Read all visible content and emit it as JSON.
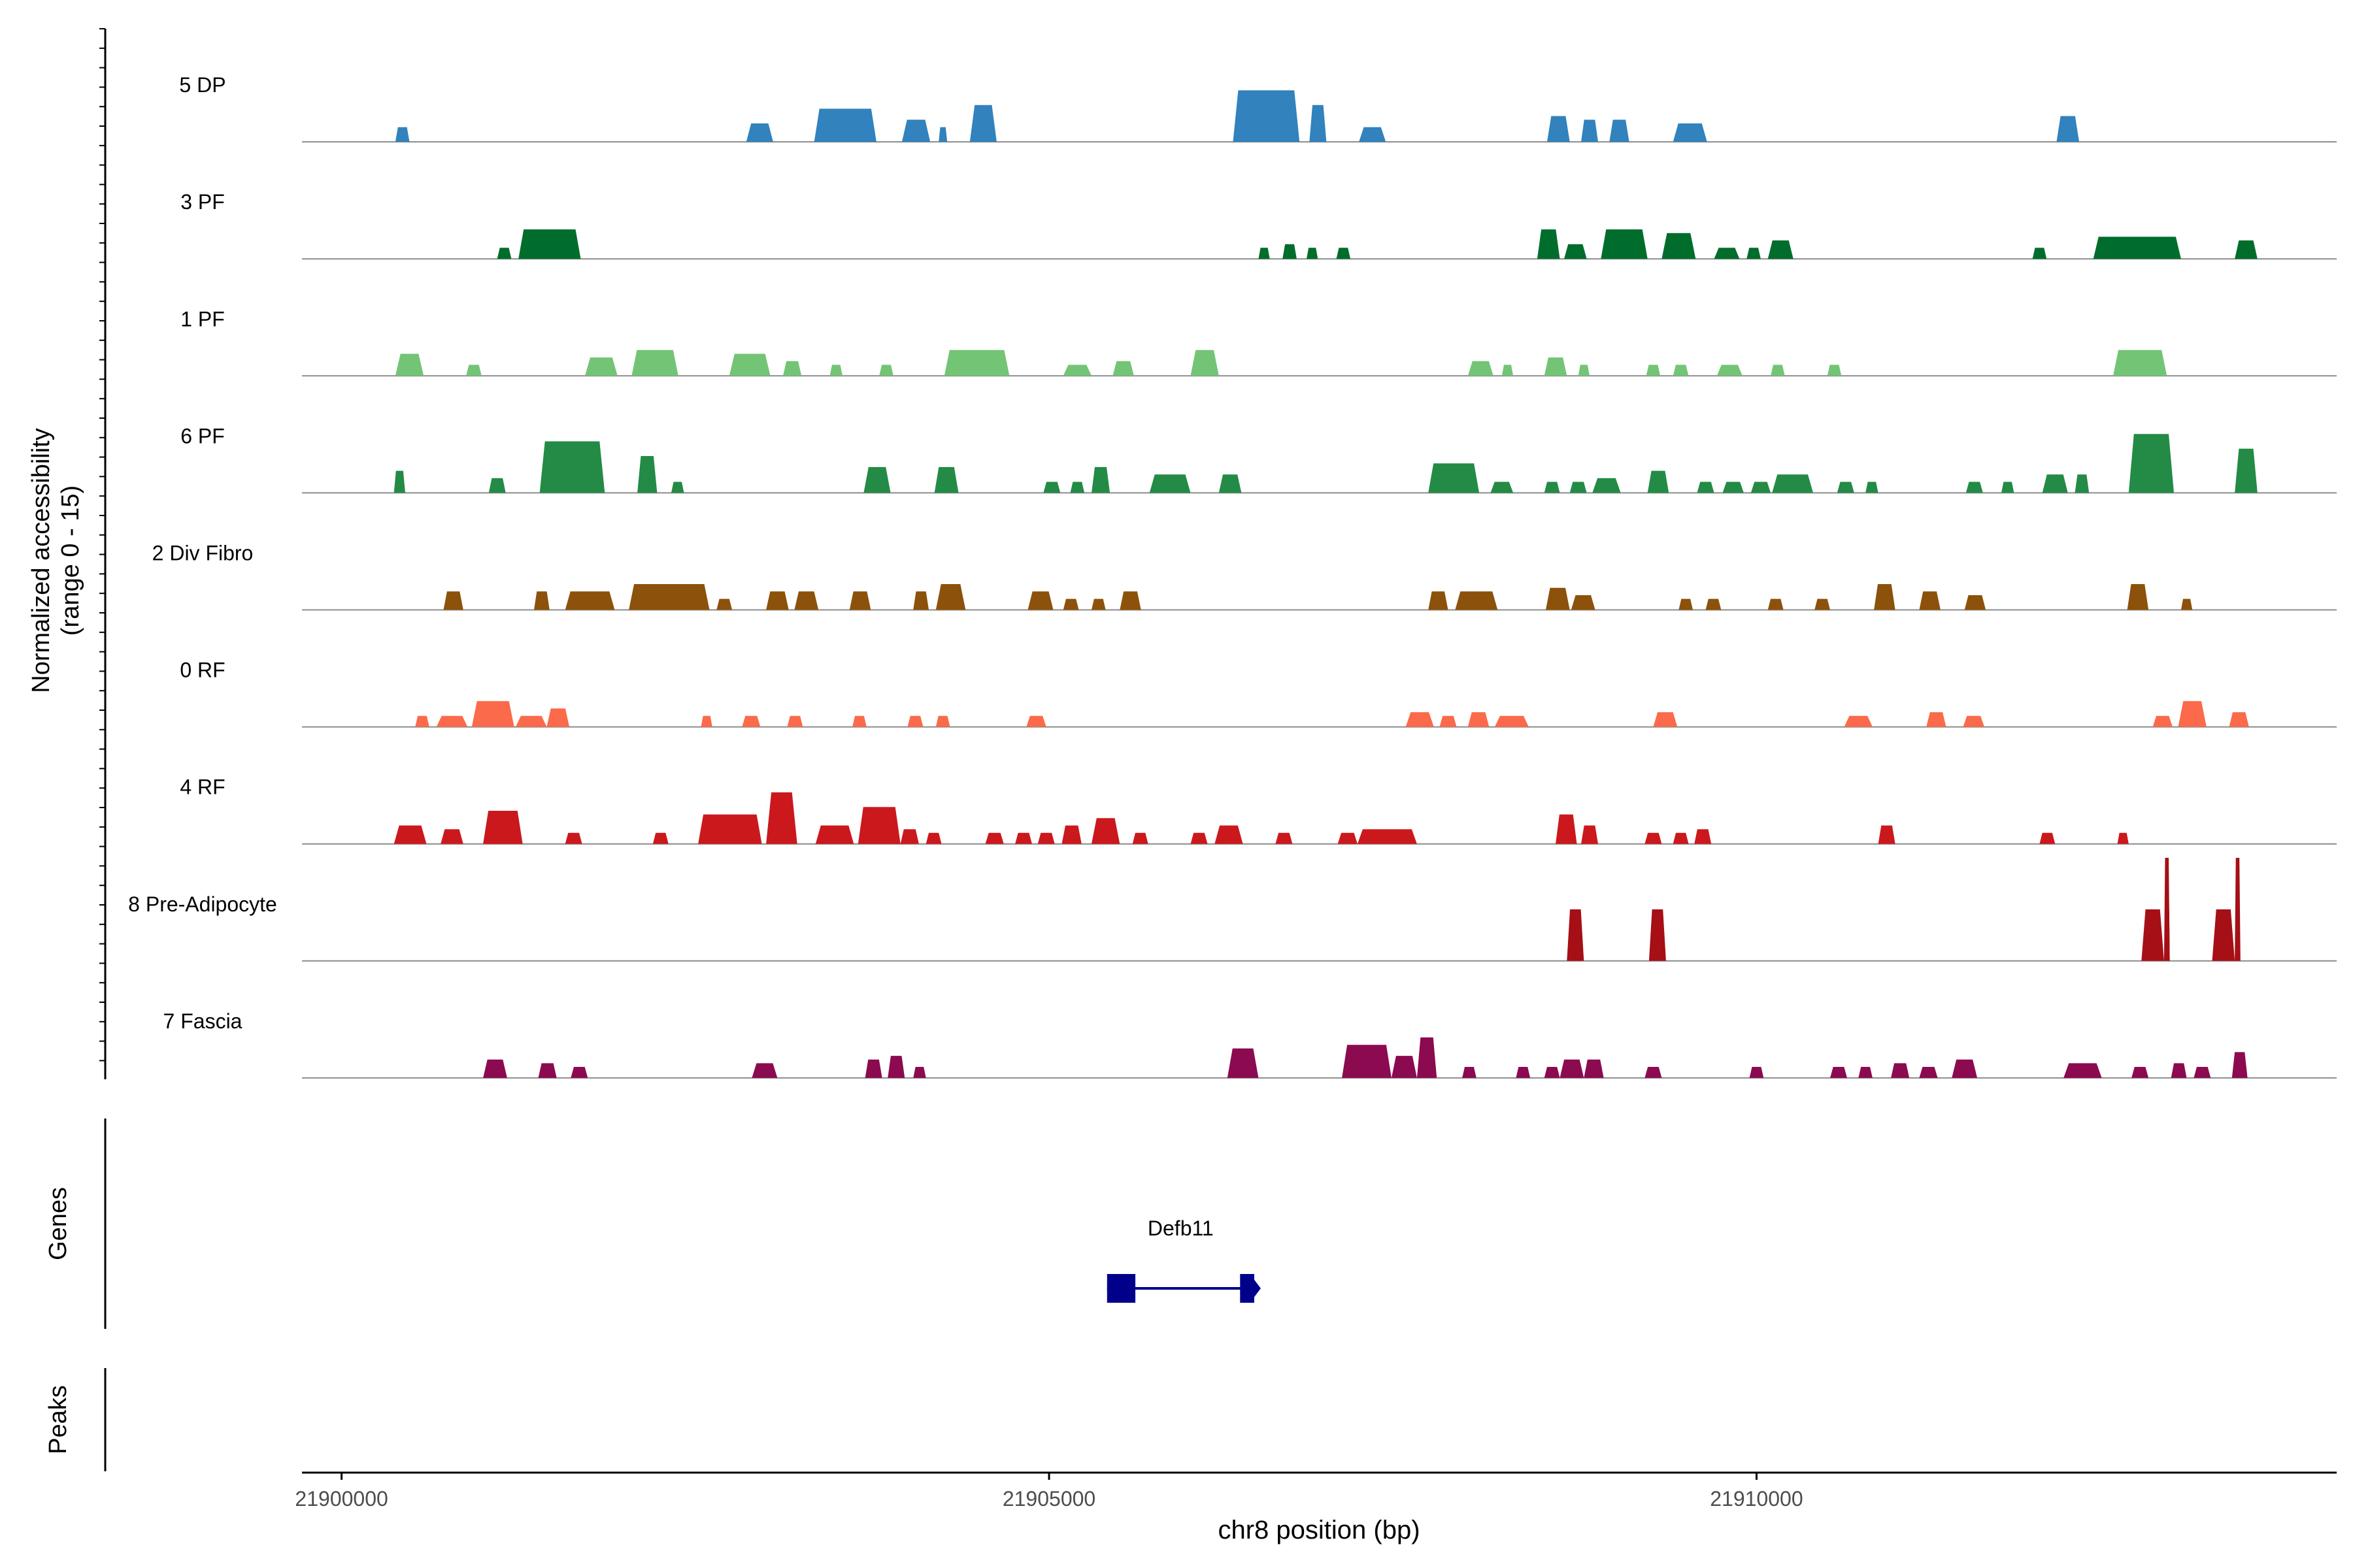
{
  "chart_data": {
    "type": "area",
    "title": "",
    "y_axis_title_line1": "Normalized accessibility",
    "y_axis_title_line2": "(range 0 - 15)",
    "ylim": [
      0,
      15
    ],
    "x_axis_title": "chr8 position (bp)",
    "xlim": [
      21899720,
      21914100
    ],
    "x_ticks": [
      {
        "value": 21900000,
        "label": "21900000"
      },
      {
        "value": 21905000,
        "label": "21905000"
      },
      {
        "value": 21910000,
        "label": "21910000"
      }
    ],
    "genes_panel_label": "Genes",
    "peaks_panel_label": "Peaks",
    "gene": {
      "name": "Defb11",
      "start": 21905410,
      "end": 21906450,
      "exons": [
        [
          21905410,
          21905610
        ],
        [
          21906350,
          21906450
        ]
      ],
      "color": "#00008B"
    },
    "series": [
      {
        "name": "5 DP",
        "color": "#3182BD",
        "peaks": [
          [
            21900380,
            21900480,
            2.0
          ],
          [
            21902860,
            21903050,
            2.5
          ],
          [
            21903340,
            21903780,
            4.5
          ],
          [
            21903960,
            21904160,
            3.0
          ],
          [
            21904220,
            21904280,
            2.0
          ],
          [
            21904440,
            21904630,
            5.0
          ],
          [
            21906300,
            21906770,
            7.0
          ],
          [
            21906840,
            21906960,
            5.0
          ],
          [
            21907190,
            21907380,
            2.0
          ],
          [
            21908520,
            21908680,
            3.5
          ],
          [
            21908760,
            21908880,
            3.0
          ],
          [
            21908960,
            21909100,
            3.0
          ],
          [
            21909410,
            21909650,
            2.5
          ],
          [
            21912120,
            21912280,
            3.5
          ]
        ]
      },
      {
        "name": "3 PF",
        "color": "#006D2C",
        "peaks": [
          [
            21901100,
            21901200,
            1.5
          ],
          [
            21901250,
            21901690,
            4.0
          ],
          [
            21906480,
            21906560,
            1.5
          ],
          [
            21906650,
            21906750,
            2.0
          ],
          [
            21906820,
            21906900,
            1.5
          ],
          [
            21907030,
            21907130,
            1.5
          ],
          [
            21908450,
            21908610,
            4.0
          ],
          [
            21908640,
            21908800,
            2.0
          ],
          [
            21908900,
            21909230,
            4.0
          ],
          [
            21909330,
            21909570,
            3.5
          ],
          [
            21909700,
            21909880,
            1.5
          ],
          [
            21909930,
            21910030,
            1.5
          ],
          [
            21910080,
            21910260,
            2.5
          ],
          [
            21911950,
            21912050,
            1.5
          ],
          [
            21912380,
            21913000,
            3.0
          ],
          [
            21913380,
            21913540,
            2.5
          ]
        ]
      },
      {
        "name": "1 PF",
        "color": "#74C476",
        "peaks": [
          [
            21900380,
            21900580,
            3.0
          ],
          [
            21900880,
            21900990,
            1.5
          ],
          [
            21901720,
            21901950,
            2.5
          ],
          [
            21902050,
            21902380,
            3.5
          ],
          [
            21902740,
            21903030,
            3.0
          ],
          [
            21903120,
            21903250,
            2.0
          ],
          [
            21903450,
            21903540,
            1.5
          ],
          [
            21903800,
            21903900,
            1.5
          ],
          [
            21904260,
            21904720,
            3.5
          ],
          [
            21905100,
            21905300,
            1.5
          ],
          [
            21905450,
            21905600,
            2.0
          ],
          [
            21906000,
            21906200,
            3.5
          ],
          [
            21907960,
            21908140,
            2.0
          ],
          [
            21908200,
            21908280,
            1.5
          ],
          [
            21908500,
            21908660,
            2.5
          ],
          [
            21908740,
            21908820,
            1.5
          ],
          [
            21909220,
            21909320,
            1.5
          ],
          [
            21909410,
            21909520,
            1.5
          ],
          [
            21909720,
            21909900,
            1.5
          ],
          [
            21910100,
            21910200,
            1.5
          ],
          [
            21910500,
            21910600,
            1.5
          ],
          [
            21912520,
            21912900,
            3.5
          ]
        ]
      },
      {
        "name": "6 PF",
        "color": "#238B45",
        "peaks": [
          [
            21900370,
            21900450,
            3.0
          ],
          [
            21901040,
            21901160,
            2.0
          ],
          [
            21901400,
            21901860,
            7.0
          ],
          [
            21902090,
            21902230,
            5.0
          ],
          [
            21902330,
            21902420,
            1.5
          ],
          [
            21903690,
            21903880,
            3.5
          ],
          [
            21904190,
            21904360,
            3.5
          ],
          [
            21904960,
            21905080,
            1.5
          ],
          [
            21905150,
            21905250,
            1.5
          ],
          [
            21905300,
            21905430,
            3.5
          ],
          [
            21905710,
            21906000,
            2.5
          ],
          [
            21906200,
            21906360,
            2.5
          ],
          [
            21907680,
            21908040,
            4.0
          ],
          [
            21908120,
            21908280,
            1.5
          ],
          [
            21908500,
            21908610,
            1.5
          ],
          [
            21908680,
            21908800,
            1.5
          ],
          [
            21908840,
            21909040,
            2.0
          ],
          [
            21909230,
            21909380,
            3.0
          ],
          [
            21909580,
            21909700,
            1.5
          ],
          [
            21909760,
            21909910,
            1.5
          ],
          [
            21909960,
            21910100,
            1.5
          ],
          [
            21910110,
            21910400,
            2.5
          ],
          [
            21910570,
            21910690,
            1.5
          ],
          [
            21910770,
            21910860,
            1.5
          ],
          [
            21911480,
            21911600,
            1.5
          ],
          [
            21911730,
            21911820,
            1.5
          ],
          [
            21912020,
            21912200,
            2.5
          ],
          [
            21912250,
            21912350,
            2.5
          ],
          [
            21912630,
            21912950,
            8.0
          ],
          [
            21913380,
            21913540,
            6.0
          ]
        ]
      },
      {
        "name": "2 Div Fibro",
        "color": "#8C510A",
        "peaks": [
          [
            21900720,
            21900860,
            2.5
          ],
          [
            21901360,
            21901470,
            2.5
          ],
          [
            21901580,
            21901930,
            2.5
          ],
          [
            21902030,
            21902600,
            3.5
          ],
          [
            21902650,
            21902760,
            1.5
          ],
          [
            21903000,
            21903160,
            2.5
          ],
          [
            21903200,
            21903370,
            2.5
          ],
          [
            21903590,
            21903740,
            2.5
          ],
          [
            21904040,
            21904150,
            2.5
          ],
          [
            21904200,
            21904410,
            3.5
          ],
          [
            21904850,
            21905030,
            2.5
          ],
          [
            21905100,
            21905210,
            1.5
          ],
          [
            21905300,
            21905400,
            1.5
          ],
          [
            21905500,
            21905650,
            2.5
          ],
          [
            21907680,
            21907820,
            2.5
          ],
          [
            21907870,
            21908170,
            2.5
          ],
          [
            21908510,
            21908680,
            3.0
          ],
          [
            21908690,
            21908860,
            2.0
          ],
          [
            21909450,
            21909550,
            1.5
          ],
          [
            21909640,
            21909750,
            1.5
          ],
          [
            21910080,
            21910190,
            1.5
          ],
          [
            21910410,
            21910520,
            1.5
          ],
          [
            21910830,
            21910980,
            3.5
          ],
          [
            21911150,
            21911300,
            2.5
          ],
          [
            21911470,
            21911620,
            2.0
          ],
          [
            21912620,
            21912770,
            3.5
          ],
          [
            21913000,
            21913080,
            1.5
          ]
        ]
      },
      {
        "name": "0 RF",
        "color": "#FB6A4A",
        "peaks": [
          [
            21900520,
            21900620,
            1.5
          ],
          [
            21900670,
            21900890,
            1.5
          ],
          [
            21900920,
            21901220,
            3.5
          ],
          [
            21901230,
            21901450,
            1.5
          ],
          [
            21901450,
            21901610,
            2.5
          ],
          [
            21902540,
            21902620,
            1.5
          ],
          [
            21902830,
            21902960,
            1.5
          ],
          [
            21903150,
            21903260,
            1.5
          ],
          [
            21903610,
            21903710,
            1.5
          ],
          [
            21904000,
            21904110,
            1.5
          ],
          [
            21904200,
            21904300,
            1.5
          ],
          [
            21904840,
            21904980,
            1.5
          ],
          [
            21907520,
            21907720,
            2.0
          ],
          [
            21907760,
            21907880,
            1.5
          ],
          [
            21907960,
            21908110,
            2.0
          ],
          [
            21908150,
            21908390,
            1.5
          ],
          [
            21909270,
            21909440,
            2.0
          ],
          [
            21910620,
            21910820,
            1.5
          ],
          [
            21911200,
            21911340,
            2.0
          ],
          [
            21911460,
            21911610,
            1.5
          ],
          [
            21912800,
            21912940,
            1.5
          ],
          [
            21912980,
            21913180,
            3.5
          ],
          [
            21913340,
            21913480,
            2.0
          ]
        ]
      },
      {
        "name": "4 RF",
        "color": "#CB181D",
        "peaks": [
          [
            21900370,
            21900600,
            2.5
          ],
          [
            21900700,
            21900860,
            2.0
          ],
          [
            21901000,
            21901280,
            4.5
          ],
          [
            21901580,
            21901700,
            1.5
          ],
          [
            21902200,
            21902310,
            1.5
          ],
          [
            21902520,
            21902970,
            4.0
          ],
          [
            21903000,
            21903220,
            7.0
          ],
          [
            21903350,
            21903620,
            2.5
          ],
          [
            21903650,
            21903950,
            5.0
          ],
          [
            21903950,
            21904080,
            2.0
          ],
          [
            21904130,
            21904240,
            1.5
          ],
          [
            21904550,
            21904680,
            1.5
          ],
          [
            21904760,
            21904880,
            1.5
          ],
          [
            21904920,
            21905040,
            1.5
          ],
          [
            21905090,
            21905230,
            2.5
          ],
          [
            21905300,
            21905500,
            3.5
          ],
          [
            21905590,
            21905700,
            1.5
          ],
          [
            21906000,
            21906120,
            1.5
          ],
          [
            21906170,
            21906370,
            2.5
          ],
          [
            21906600,
            21906720,
            1.5
          ],
          [
            21907040,
            21907180,
            1.5
          ],
          [
            21907180,
            21907600,
            2.0
          ],
          [
            21908580,
            21908730,
            4.0
          ],
          [
            21908760,
            21908880,
            2.5
          ],
          [
            21909210,
            21909330,
            1.5
          ],
          [
            21909410,
            21909520,
            1.5
          ],
          [
            21909560,
            21909680,
            2.0
          ],
          [
            21910860,
            21910980,
            2.5
          ],
          [
            21912000,
            21912110,
            1.5
          ],
          [
            21912550,
            21912630,
            1.5
          ]
        ]
      },
      {
        "name": "8 Pre-Adipocyte",
        "color": "#A50F15",
        "peaks": [
          [
            21908660,
            21908780,
            7.0
          ],
          [
            21909240,
            21909360,
            7.0
          ],
          [
            21912720,
            21912880,
            7.0
          ],
          [
            21912880,
            21912920,
            14.0
          ],
          [
            21912920,
            21912900,
            7.0
          ],
          [
            21913220,
            21913380,
            7.0
          ],
          [
            21913380,
            21913420,
            14.0
          ]
        ]
      },
      {
        "name": "7 Fascia",
        "color": "#8B0A50",
        "peaks": [
          [
            21901000,
            21901170,
            2.5
          ],
          [
            21901390,
            21901520,
            2.0
          ],
          [
            21901620,
            21901740,
            1.5
          ],
          [
            21902900,
            21903080,
            2.0
          ],
          [
            21903700,
            21903820,
            2.5
          ],
          [
            21903860,
            21903980,
            3.0
          ],
          [
            21904040,
            21904130,
            1.5
          ],
          [
            21906260,
            21906480,
            4.0
          ],
          [
            21907070,
            21907420,
            4.5
          ],
          [
            21907420,
            21907600,
            3.0
          ],
          [
            21907600,
            21907740,
            5.5
          ],
          [
            21907920,
            21908020,
            1.5
          ],
          [
            21908300,
            21908400,
            1.5
          ],
          [
            21908500,
            21908610,
            1.5
          ],
          [
            21908610,
            21908780,
            2.5
          ],
          [
            21908780,
            21908920,
            2.5
          ],
          [
            21909210,
            21909330,
            1.5
          ],
          [
            21909950,
            21910050,
            1.5
          ],
          [
            21910520,
            21910640,
            1.5
          ],
          [
            21910720,
            21910820,
            1.5
          ],
          [
            21910950,
            21911080,
            2.0
          ],
          [
            21911150,
            21911280,
            1.5
          ],
          [
            21911380,
            21911560,
            2.5
          ],
          [
            21912170,
            21912440,
            2.0
          ],
          [
            21912650,
            21912770,
            1.5
          ],
          [
            21912930,
            21913040,
            2.0
          ],
          [
            21913090,
            21913210,
            1.5
          ],
          [
            21913360,
            21913470,
            3.5
          ]
        ]
      }
    ]
  }
}
